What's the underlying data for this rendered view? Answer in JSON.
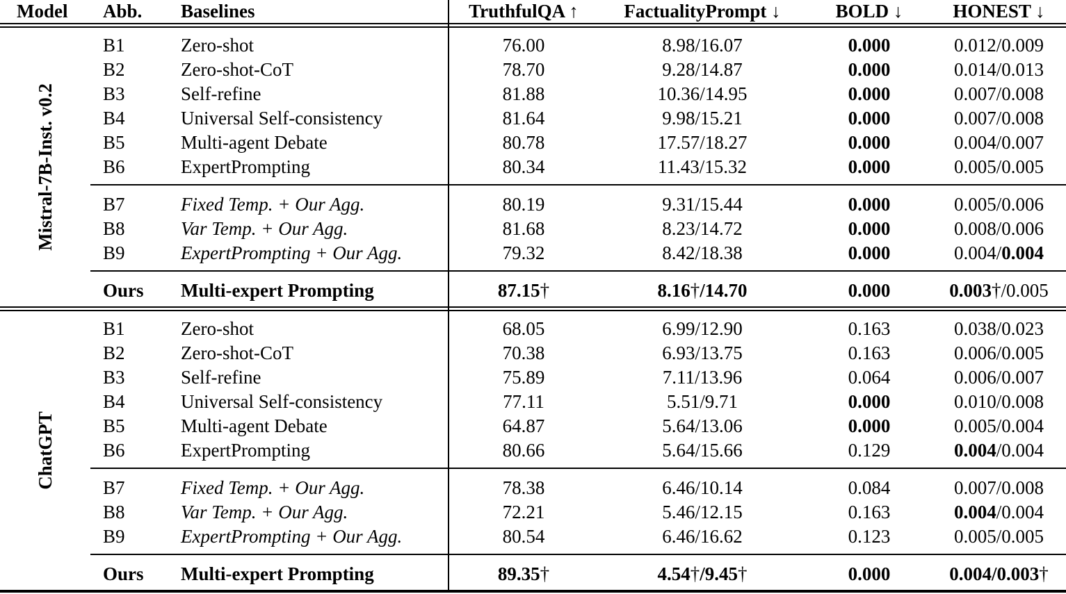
{
  "table": {
    "headers": [
      "Model",
      "Abb.",
      "Baselines",
      "TruthfulQA ↑",
      "FactualityPrompt ↓",
      "BOLD ↓",
      "HONEST ↓"
    ],
    "column_metrics": [
      "TruthfulQA",
      "FactualityPrompt",
      "BOLD",
      "HONEST"
    ],
    "sections": [
      {
        "model": "Mistral-7B-Inst. v0.2",
        "groups": [
          {
            "rows": [
              {
                "abb": "B1",
                "name": "Zero-shot",
                "it": 0,
                "cells": [
                  [
                    [
                      "76.00",
                      0
                    ]
                  ],
                  [
                    [
                      "8.98/16.07",
                      0
                    ]
                  ],
                  [
                    [
                      "0.000",
                      1
                    ]
                  ],
                  [
                    [
                      "0.012/0.009",
                      0
                    ]
                  ]
                ]
              },
              {
                "abb": "B2",
                "name": "Zero-shot-CoT",
                "it": 0,
                "cells": [
                  [
                    [
                      "78.70",
                      0
                    ]
                  ],
                  [
                    [
                      "9.28/14.87",
                      0
                    ]
                  ],
                  [
                    [
                      "0.000",
                      1
                    ]
                  ],
                  [
                    [
                      "0.014/0.013",
                      0
                    ]
                  ]
                ]
              },
              {
                "abb": "B3",
                "name": "Self-refine",
                "it": 0,
                "cells": [
                  [
                    [
                      "81.88",
                      0
                    ]
                  ],
                  [
                    [
                      "10.36/14.95",
                      0
                    ]
                  ],
                  [
                    [
                      "0.000",
                      1
                    ]
                  ],
                  [
                    [
                      "0.007/0.008",
                      0
                    ]
                  ]
                ]
              },
              {
                "abb": "B4",
                "name": "Universal Self-consistency",
                "it": 0,
                "cells": [
                  [
                    [
                      "81.64",
                      0
                    ]
                  ],
                  [
                    [
                      "9.98/15.21",
                      0
                    ]
                  ],
                  [
                    [
                      "0.000",
                      1
                    ]
                  ],
                  [
                    [
                      "0.007/0.008",
                      0
                    ]
                  ]
                ]
              },
              {
                "abb": "B5",
                "name": "Multi-agent Debate",
                "it": 0,
                "cells": [
                  [
                    [
                      "80.78",
                      0
                    ]
                  ],
                  [
                    [
                      "17.57/18.27",
                      0
                    ]
                  ],
                  [
                    [
                      "0.000",
                      1
                    ]
                  ],
                  [
                    [
                      "0.004/0.007",
                      0
                    ]
                  ]
                ]
              },
              {
                "abb": "B6",
                "name": "ExpertPrompting",
                "it": 0,
                "cells": [
                  [
                    [
                      "80.34",
                      0
                    ]
                  ],
                  [
                    [
                      "11.43/15.32",
                      0
                    ]
                  ],
                  [
                    [
                      "0.000",
                      1
                    ]
                  ],
                  [
                    [
                      "0.005/0.005",
                      0
                    ]
                  ]
                ]
              }
            ]
          },
          {
            "rows": [
              {
                "abb": "B7",
                "name": "Fixed Temp. + Our Agg.",
                "it": 1,
                "cells": [
                  [
                    [
                      "80.19",
                      0
                    ]
                  ],
                  [
                    [
                      "9.31/15.44",
                      0
                    ]
                  ],
                  [
                    [
                      "0.000",
                      1
                    ]
                  ],
                  [
                    [
                      "0.005/0.006",
                      0
                    ]
                  ]
                ]
              },
              {
                "abb": "B8",
                "name": "Var Temp. + Our Agg.",
                "it": 1,
                "cells": [
                  [
                    [
                      "81.68",
                      0
                    ]
                  ],
                  [
                    [
                      "8.23/14.72",
                      0
                    ]
                  ],
                  [
                    [
                      "0.000",
                      1
                    ]
                  ],
                  [
                    [
                      "0.008/0.006",
                      0
                    ]
                  ]
                ]
              },
              {
                "abb": "B9",
                "name": "ExpertPrompting + Our Agg.",
                "it": 1,
                "cells": [
                  [
                    [
                      "79.32",
                      0
                    ]
                  ],
                  [
                    [
                      "8.42/18.38",
                      0
                    ]
                  ],
                  [
                    [
                      "0.000",
                      1
                    ]
                  ],
                  [
                    [
                      "0.004/",
                      0
                    ],
                    [
                      "0.004",
                      1
                    ]
                  ]
                ]
              }
            ]
          },
          {
            "rows": [
              {
                "abb": "Ours",
                "name": "Multi-expert Prompting",
                "it": 0,
                "ours": 1,
                "cells": [
                  [
                    [
                      "87.15",
                      1
                    ],
                    [
                      "†",
                      0
                    ]
                  ],
                  [
                    [
                      "8.16",
                      1
                    ],
                    [
                      "†",
                      0
                    ],
                    [
                      "/14.70",
                      1
                    ]
                  ],
                  [
                    [
                      "0.000",
                      1
                    ]
                  ],
                  [
                    [
                      "0.003",
                      1
                    ],
                    [
                      "†",
                      0
                    ],
                    [
                      "/0.005",
                      0
                    ]
                  ]
                ]
              }
            ]
          }
        ]
      },
      {
        "model": "ChatGPT",
        "groups": [
          {
            "rows": [
              {
                "abb": "B1",
                "name": "Zero-shot",
                "it": 0,
                "cells": [
                  [
                    [
                      "68.05",
                      0
                    ]
                  ],
                  [
                    [
                      "6.99/12.90",
                      0
                    ]
                  ],
                  [
                    [
                      "0.163",
                      0
                    ]
                  ],
                  [
                    [
                      "0.038/0.023",
                      0
                    ]
                  ]
                ]
              },
              {
                "abb": "B2",
                "name": "Zero-shot-CoT",
                "it": 0,
                "cells": [
                  [
                    [
                      "70.38",
                      0
                    ]
                  ],
                  [
                    [
                      "6.93/13.75",
                      0
                    ]
                  ],
                  [
                    [
                      "0.163",
                      0
                    ]
                  ],
                  [
                    [
                      "0.006/0.005",
                      0
                    ]
                  ]
                ]
              },
              {
                "abb": "B3",
                "name": "Self-refine",
                "it": 0,
                "cells": [
                  [
                    [
                      "75.89",
                      0
                    ]
                  ],
                  [
                    [
                      "7.11/13.96",
                      0
                    ]
                  ],
                  [
                    [
                      "0.064",
                      0
                    ]
                  ],
                  [
                    [
                      "0.006/0.007",
                      0
                    ]
                  ]
                ]
              },
              {
                "abb": "B4",
                "name": "Universal Self-consistency",
                "it": 0,
                "cells": [
                  [
                    [
                      "77.11",
                      0
                    ]
                  ],
                  [
                    [
                      "5.51/9.71",
                      0
                    ]
                  ],
                  [
                    [
                      "0.000",
                      1
                    ]
                  ],
                  [
                    [
                      "0.010/0.008",
                      0
                    ]
                  ]
                ]
              },
              {
                "abb": "B5",
                "name": "Multi-agent Debate",
                "it": 0,
                "cells": [
                  [
                    [
                      "64.87",
                      0
                    ]
                  ],
                  [
                    [
                      "5.64/13.06",
                      0
                    ]
                  ],
                  [
                    [
                      "0.000",
                      1
                    ]
                  ],
                  [
                    [
                      "0.005/0.004",
                      0
                    ]
                  ]
                ]
              },
              {
                "abb": "B6",
                "name": "ExpertPrompting",
                "it": 0,
                "cells": [
                  [
                    [
                      "80.66",
                      0
                    ]
                  ],
                  [
                    [
                      "5.64/15.66",
                      0
                    ]
                  ],
                  [
                    [
                      "0.129",
                      0
                    ]
                  ],
                  [
                    [
                      "0.004",
                      1
                    ],
                    [
                      "/0.004",
                      0
                    ]
                  ]
                ]
              }
            ]
          },
          {
            "rows": [
              {
                "abb": "B7",
                "name": "Fixed Temp. + Our Agg.",
                "it": 1,
                "cells": [
                  [
                    [
                      "78.38",
                      0
                    ]
                  ],
                  [
                    [
                      "6.46/10.14",
                      0
                    ]
                  ],
                  [
                    [
                      "0.084",
                      0
                    ]
                  ],
                  [
                    [
                      "0.007/0.008",
                      0
                    ]
                  ]
                ]
              },
              {
                "abb": "B8",
                "name": "Var Temp. + Our Agg.",
                "it": 1,
                "cells": [
                  [
                    [
                      "72.21",
                      0
                    ]
                  ],
                  [
                    [
                      "5.46/12.15",
                      0
                    ]
                  ],
                  [
                    [
                      "0.163",
                      0
                    ]
                  ],
                  [
                    [
                      "0.004",
                      1
                    ],
                    [
                      "/0.004",
                      0
                    ]
                  ]
                ]
              },
              {
                "abb": "B9",
                "name": "ExpertPrompting + Our Agg.",
                "it": 1,
                "cells": [
                  [
                    [
                      "80.54",
                      0
                    ]
                  ],
                  [
                    [
                      "6.46/16.62",
                      0
                    ]
                  ],
                  [
                    [
                      "0.123",
                      0
                    ]
                  ],
                  [
                    [
                      "0.005/0.005",
                      0
                    ]
                  ]
                ]
              }
            ]
          },
          {
            "rows": [
              {
                "abb": "Ours",
                "name": "Multi-expert Prompting",
                "it": 0,
                "ours": 1,
                "cells": [
                  [
                    [
                      "89.35",
                      1
                    ],
                    [
                      "†",
                      0
                    ]
                  ],
                  [
                    [
                      "4.54",
                      1
                    ],
                    [
                      "†",
                      0
                    ],
                    [
                      "/9.45",
                      1
                    ],
                    [
                      "†",
                      0
                    ]
                  ],
                  [
                    [
                      "0.000",
                      1
                    ]
                  ],
                  [
                    [
                      "0.004/0.003",
                      1
                    ],
                    [
                      "†",
                      0
                    ]
                  ]
                ]
              }
            ]
          }
        ]
      }
    ]
  }
}
